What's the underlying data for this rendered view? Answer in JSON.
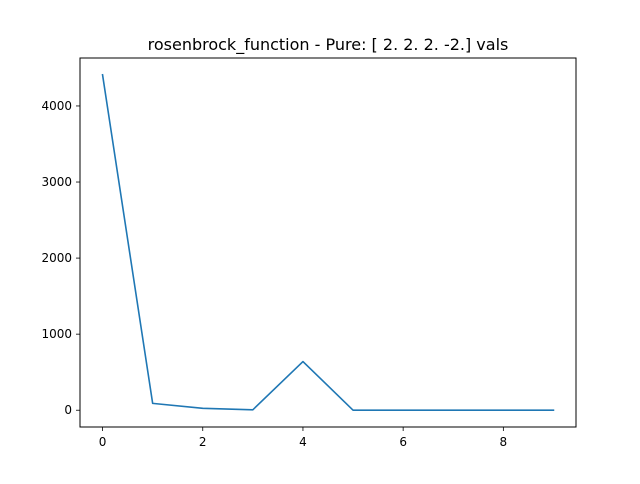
{
  "chart_data": {
    "type": "line",
    "title": "rosenbrock_function - Pure: [ 2.  2.  2. -2.] vals",
    "xlabel": "",
    "ylabel": "",
    "x": [
      0,
      1,
      2,
      3,
      4,
      5,
      6,
      7,
      8,
      9
    ],
    "series": [
      {
        "values": [
          4410,
          90,
          25,
          6,
          640,
          1,
          1,
          1,
          1,
          1
        ]
      }
    ],
    "xlim": [
      -0.45,
      9.45
    ],
    "ylim": [
      -220.5,
      4630.5
    ],
    "xticks": [
      0,
      2,
      4,
      6,
      8
    ],
    "xtick_labels": [
      "0",
      "2",
      "4",
      "6",
      "8"
    ],
    "yticks": [
      0,
      1000,
      2000,
      3000,
      4000
    ],
    "ytick_labels": [
      "0",
      "1000",
      "2000",
      "3000",
      "4000"
    ],
    "grid": false,
    "legend": "none",
    "line_color": "#1f77b4"
  }
}
